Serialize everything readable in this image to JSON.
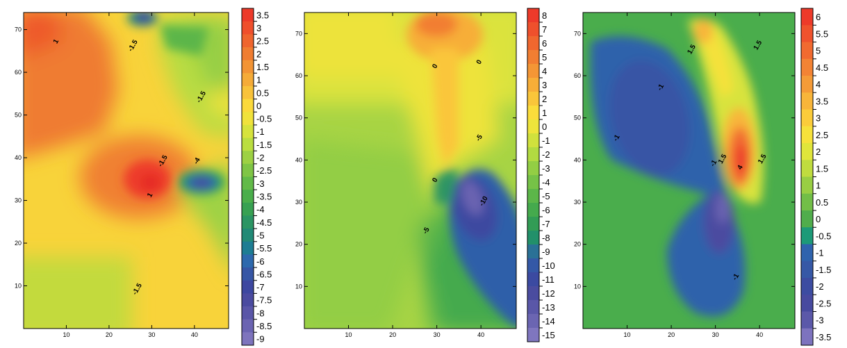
{
  "chart_data": [
    {
      "type": "heatmap",
      "title": "",
      "xlabel": "",
      "ylabel": "",
      "xlim": [
        0,
        48
      ],
      "ylim": [
        0,
        74
      ],
      "x_ticks": [
        "10",
        "20",
        "30",
        "40"
      ],
      "y_ticks": [
        "10",
        "20",
        "30",
        "40",
        "50",
        "60",
        "70"
      ],
      "colorbar_levels": [
        "3.5",
        "3",
        "2.5",
        "2",
        "1.5",
        "1",
        "0.5",
        "0",
        "-0.5",
        "-1",
        "-1.5",
        "-2",
        "-2.5",
        "-3",
        "-3.5",
        "-4",
        "-4.5",
        "-5",
        "-5.5",
        "-6",
        "-6.5",
        "-7",
        "-7.5",
        "-8",
        "-8.5",
        "-9"
      ],
      "colorbar_colors": [
        "#ed3a2a",
        "#ef4f2c",
        "#ef652e",
        "#f07d31",
        "#f29435",
        "#f5ab38",
        "#f8c23a",
        "#fbd93b",
        "#f0e23b",
        "#d6e33c",
        "#bade40",
        "#9dd143",
        "#7fc545",
        "#62ba48",
        "#4aae4b",
        "#38a152",
        "#2b9563",
        "#218a76",
        "#1d7d93",
        "#2d69ad",
        "#3656a5",
        "#3d47a0",
        "#4b4ba0",
        "#5a56a8",
        "#6b64b2",
        "#7e74bd"
      ],
      "contour_labels": [
        {
          "text": "1",
          "x": 8,
          "y": 67
        },
        {
          "text": "-1.5",
          "x": 26,
          "y": 66
        },
        {
          "text": "-1.5",
          "x": 42,
          "y": 54
        },
        {
          "text": "-1.5",
          "x": 33,
          "y": 39
        },
        {
          "text": "-4",
          "x": 41,
          "y": 39
        },
        {
          "text": "1",
          "x": 30,
          "y": 31
        },
        {
          "text": "-1.5",
          "x": 27,
          "y": 9
        }
      ],
      "features": [
        {
          "kind": "maximum",
          "value": 3.5,
          "x": 29.5,
          "y": 36
        },
        {
          "kind": "minimum",
          "value": -8.5,
          "x": 42,
          "y": 35.5
        },
        {
          "kind": "minimum",
          "value": -7,
          "x": 28,
          "y": 72
        }
      ]
    },
    {
      "type": "heatmap",
      "title": "",
      "xlabel": "",
      "ylabel": "",
      "xlim": [
        0,
        48
      ],
      "ylim": [
        0,
        75
      ],
      "x_ticks": [
        "10",
        "20",
        "30",
        "40"
      ],
      "y_ticks": [
        "10",
        "20",
        "30",
        "40",
        "50",
        "60",
        "70"
      ],
      "colorbar_levels": [
        "8",
        "7",
        "6",
        "5",
        "4",
        "3",
        "2",
        "1",
        "0",
        "-1",
        "-2",
        "-3",
        "-4",
        "-5",
        "-6",
        "-7",
        "-8",
        "-9",
        "-10",
        "-11",
        "-12",
        "-13",
        "-14",
        "-15"
      ],
      "colorbar_colors": [
        "#ed3a2a",
        "#ef502c",
        "#f0672f",
        "#f27e32",
        "#f49635",
        "#f7ae38",
        "#fac63a",
        "#fbdd3b",
        "#eee43b",
        "#d0e13d",
        "#b2da41",
        "#93ce44",
        "#76c247",
        "#5cb649",
        "#45aa4d",
        "#329c55",
        "#22906a",
        "#2a7196",
        "#3458a6",
        "#3b4aa1",
        "#4a4c9f",
        "#5a57a8",
        "#6b65b2",
        "#7f76bf"
      ],
      "contour_labels": [
        {
          "text": "0",
          "x": 30,
          "y": 62
        },
        {
          "text": "0",
          "x": 40,
          "y": 63
        },
        {
          "text": "-5",
          "x": 40,
          "y": 45
        },
        {
          "text": "0",
          "x": 30,
          "y": 35
        },
        {
          "text": "-10",
          "x": 41,
          "y": 30
        },
        {
          "text": "-5",
          "x": 28,
          "y": 23
        }
      ],
      "features": [
        {
          "kind": "maximum",
          "value": 8,
          "x": 30,
          "y": 71
        },
        {
          "kind": "minimum",
          "value": -15,
          "x": 39,
          "y": 32
        }
      ]
    },
    {
      "type": "heatmap",
      "title": "",
      "xlabel": "",
      "ylabel": "",
      "xlim": [
        0,
        48
      ],
      "ylim": [
        0,
        75
      ],
      "x_ticks": [
        "10",
        "20",
        "30",
        "40"
      ],
      "y_ticks": [
        "10",
        "20",
        "30",
        "40",
        "50",
        "60",
        "70"
      ],
      "colorbar_levels": [
        "6",
        "5.5",
        "5",
        "4.5",
        "4",
        "3.5",
        "3",
        "2.5",
        "2",
        "1.5",
        "1",
        "0.5",
        "0",
        "-0.5",
        "-1",
        "-1.5",
        "-2",
        "-2.5",
        "-3",
        "-3.5"
      ],
      "colorbar_colors": [
        "#ed3a2a",
        "#ef522d",
        "#f16a30",
        "#f38334",
        "#f59b37",
        "#f8b53a",
        "#fbcc3b",
        "#f6e13b",
        "#e0e53b",
        "#c0dc3f",
        "#99ce43",
        "#72be47",
        "#50ad4c",
        "#1d9a78",
        "#2f63ad",
        "#3658a6",
        "#3c4ca1",
        "#474a9f",
        "#5b58a9",
        "#7d73be"
      ],
      "contour_labels": [
        {
          "text": "1.5",
          "x": 25,
          "y": 66
        },
        {
          "text": "1.5",
          "x": 40,
          "y": 67
        },
        {
          "text": "-1",
          "x": 18,
          "y": 57
        },
        {
          "text": "-1",
          "x": 8,
          "y": 45
        },
        {
          "text": "1.5",
          "x": 32,
          "y": 40
        },
        {
          "text": "-1",
          "x": 30,
          "y": 39
        },
        {
          "text": "4",
          "x": 36,
          "y": 38
        },
        {
          "text": "1.5",
          "x": 41,
          "y": 40
        },
        {
          "text": "-1",
          "x": 35,
          "y": 12
        }
      ],
      "features": [
        {
          "kind": "maximum",
          "value": 6,
          "x": 37,
          "y": 41
        },
        {
          "kind": "minimum",
          "value": -3.5,
          "x": 35,
          "y": 30
        }
      ]
    }
  ]
}
